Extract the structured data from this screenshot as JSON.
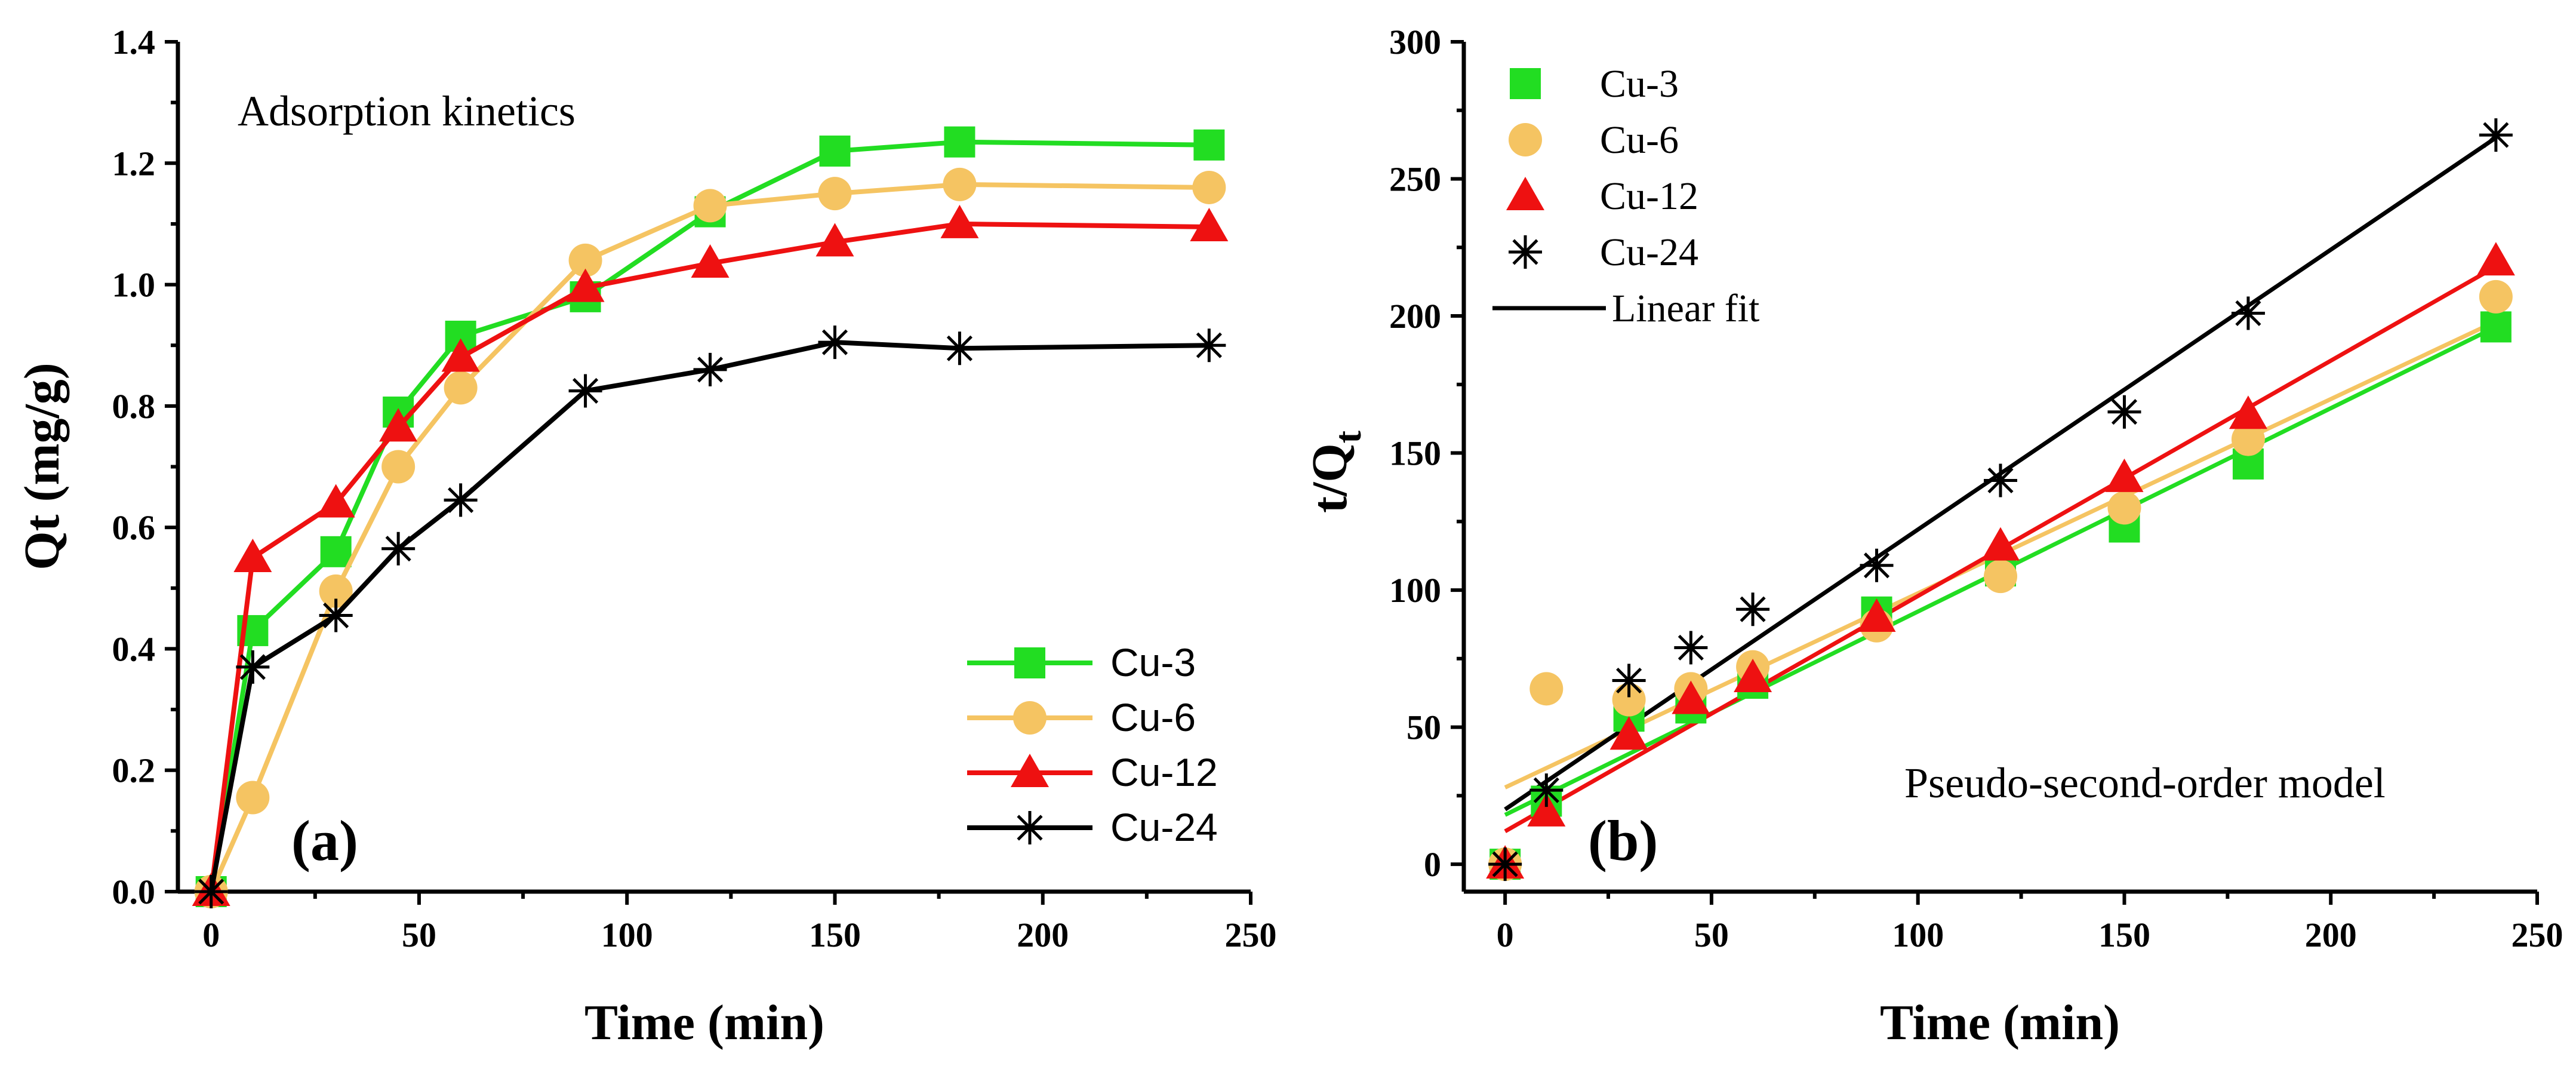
{
  "chart_data": [
    {
      "type": "line",
      "panel_label": "(a)",
      "annotation": "Adsorption kinetics",
      "xlabel": "Time (min)",
      "ylabel": "Qt (mg/g)",
      "xlim": [
        -8,
        250
      ],
      "ylim": [
        0,
        1.4
      ],
      "xticks": [
        0,
        50,
        100,
        150,
        200,
        250
      ],
      "yticks": [
        0.0,
        0.2,
        0.4,
        0.6,
        0.8,
        1.0,
        1.2,
        1.4
      ],
      "xtick_labels": [
        "0",
        "50",
        "100",
        "150",
        "200",
        "250"
      ],
      "ytick_labels": [
        "0.0",
        "0.2",
        "0.4",
        "0.6",
        "0.8",
        "1.0",
        "1.2",
        "1.4"
      ],
      "legend_position": "bottom-right",
      "x": [
        0,
        10,
        30,
        45,
        60,
        90,
        120,
        150,
        180,
        240
      ],
      "series": [
        {
          "name": "Cu-3",
          "color": "#22dd22",
          "marker": "square",
          "values": [
            0.0,
            0.43,
            0.56,
            0.79,
            0.915,
            0.98,
            1.12,
            1.22,
            1.235,
            1.23
          ]
        },
        {
          "name": "Cu-6",
          "color": "#f5c462",
          "marker": "circle",
          "values": [
            0.0,
            0.155,
            0.495,
            0.7,
            0.83,
            1.04,
            1.13,
            1.15,
            1.165,
            1.16
          ]
        },
        {
          "name": "Cu-12",
          "color": "#ee1111",
          "marker": "triangle",
          "values": [
            0.0,
            0.55,
            0.64,
            0.765,
            0.88,
            0.995,
            1.035,
            1.07,
            1.1,
            1.095
          ]
        },
        {
          "name": "Cu-24",
          "color": "#000000",
          "marker": "asterisk",
          "values": [
            0.0,
            0.37,
            0.455,
            0.565,
            0.645,
            0.825,
            0.86,
            0.905,
            0.895,
            0.9
          ]
        }
      ]
    },
    {
      "type": "scatter",
      "panel_label": "(b)",
      "annotation": "Pseudo-second-order model",
      "xlabel": "Time (min)",
      "ylabel": "t/Q",
      "ylabel_subscript": "t",
      "xlim": [
        -10,
        250
      ],
      "ylim": [
        -10,
        300
      ],
      "xticks": [
        0,
        50,
        100,
        150,
        200,
        250
      ],
      "yticks": [
        0,
        50,
        100,
        150,
        200,
        250,
        300
      ],
      "xtick_labels": [
        "0",
        "50",
        "100",
        "150",
        "200",
        "250"
      ],
      "ytick_labels": [
        "0",
        "50",
        "100",
        "150",
        "200",
        "250",
        "300"
      ],
      "legend_position": "top-left",
      "fit_label": "Linear fit",
      "x": [
        0,
        10,
        30,
        45,
        60,
        90,
        120,
        150,
        180,
        240
      ],
      "series": [
        {
          "name": "Cu-3",
          "color": "#22dd22",
          "marker": "square",
          "values": [
            0,
            23,
            54,
            57,
            66,
            92,
            107,
            123,
            146,
            196
          ],
          "fit": [
            18,
            196
          ]
        },
        {
          "name": "Cu-6",
          "color": "#f5c462",
          "marker": "circle",
          "values": [
            0,
            64,
            60,
            64,
            72,
            87,
            105,
            130,
            155,
            207
          ],
          "fit": [
            28,
            198
          ]
        },
        {
          "name": "Cu-12",
          "color": "#ee1111",
          "marker": "triangle",
          "values": [
            0,
            19,
            47,
            60,
            68,
            90,
            116,
            141,
            164,
            220
          ],
          "fit": [
            12,
            218
          ]
        },
        {
          "name": "Cu-24",
          "color": "#000000",
          "marker": "asterisk",
          "values": [
            0,
            27,
            67,
            79,
            93,
            109,
            140,
            165,
            201,
            266
          ],
          "fit": [
            20,
            265
          ]
        }
      ]
    }
  ]
}
